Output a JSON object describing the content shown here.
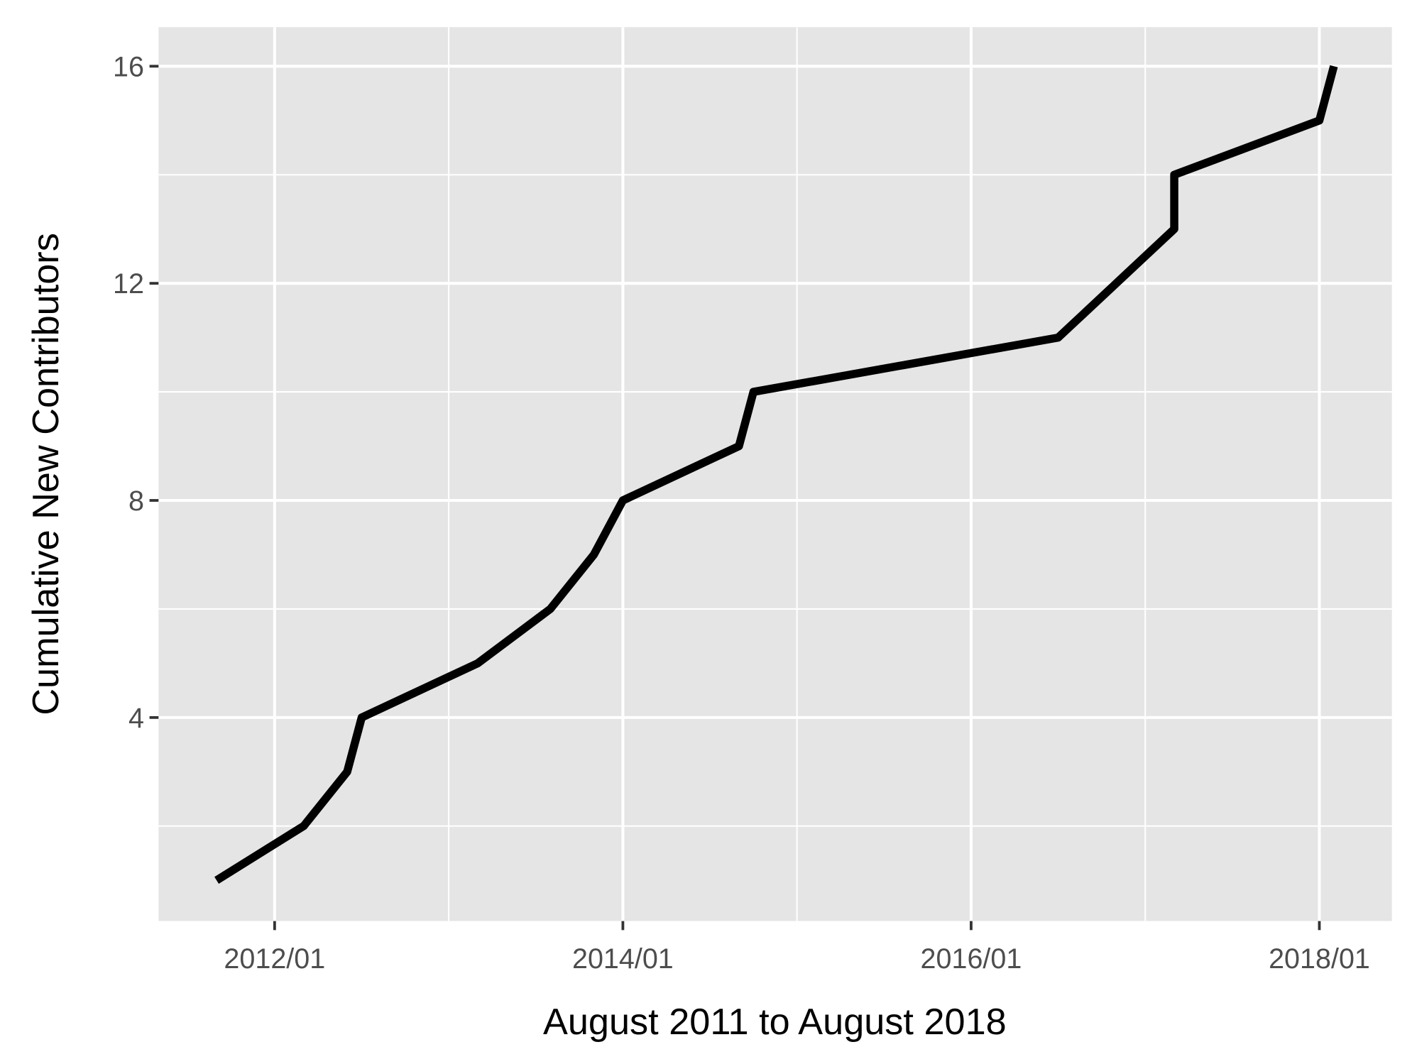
{
  "chart_data": {
    "type": "line",
    "x_label": "August 2011 to August 2018",
    "y_label": "Cumulative New Contributors",
    "x": [
      "2011/09",
      "2012/03",
      "2012/06",
      "2012/07",
      "2013/03",
      "2013/08",
      "2013/11",
      "2014/01",
      "2014/09",
      "2014/10",
      "2016/07",
      "2016/11",
      "2017/03",
      "2017/03",
      "2018/01",
      "2018/02"
    ],
    "series": [
      {
        "color": "#000000",
        "values": [
          1,
          2,
          3,
          4,
          5,
          6,
          7,
          8,
          9,
          10,
          11,
          12,
          13,
          14,
          15,
          16
        ]
      }
    ],
    "xlim": [
      "2011/05",
      "2018/06"
    ],
    "xticks": [
      "2012/01",
      "2014/01",
      "2016/01",
      "2018/01"
    ],
    "ylim": [
      0.25,
      16.72
    ],
    "yticks": [
      4,
      8,
      12,
      16
    ],
    "grid": true
  }
}
